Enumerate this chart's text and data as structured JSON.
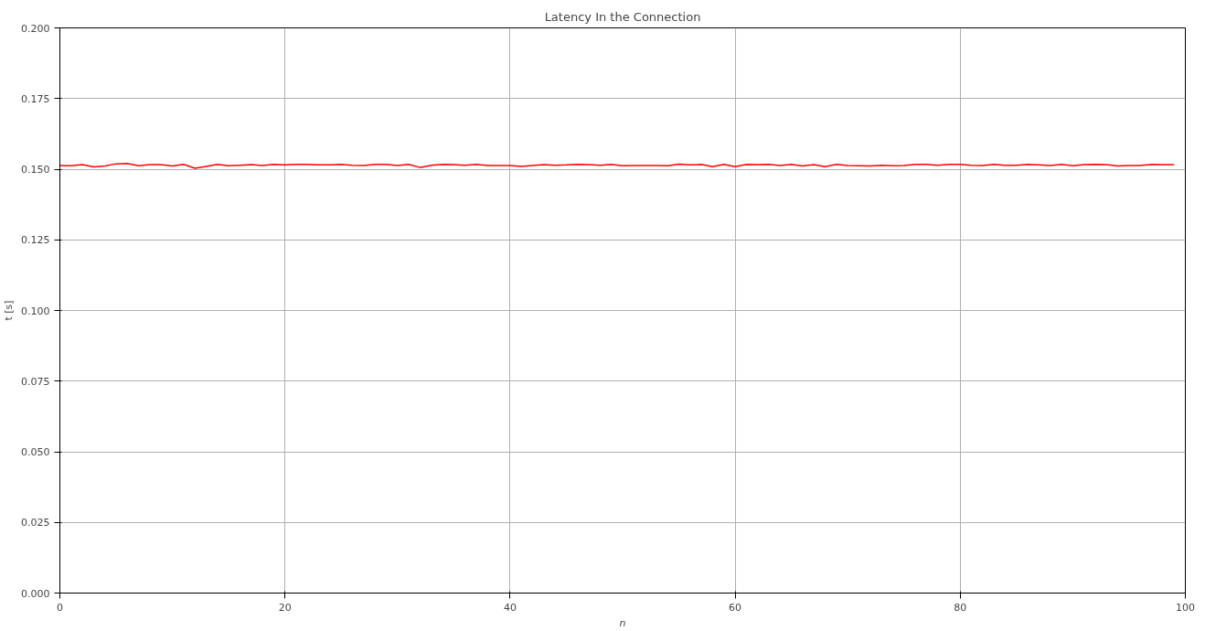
{
  "chart_data": {
    "type": "line",
    "title": "Latency In the Connection",
    "xlabel": "n",
    "ylabel": "t [s]",
    "x": [
      0,
      1,
      2,
      3,
      4,
      5,
      6,
      7,
      8,
      9,
      10,
      11,
      12,
      13,
      14,
      15,
      16,
      17,
      18,
      19,
      20,
      21,
      22,
      23,
      24,
      25,
      26,
      27,
      28,
      29,
      30,
      31,
      32,
      33,
      34,
      35,
      36,
      37,
      38,
      39,
      40,
      41,
      42,
      43,
      44,
      45,
      46,
      47,
      48,
      49,
      50,
      51,
      52,
      53,
      54,
      55,
      56,
      57,
      58,
      59,
      60,
      61,
      62,
      63,
      64,
      65,
      66,
      67,
      68,
      69,
      70,
      71,
      72,
      73,
      74,
      75,
      76,
      77,
      78,
      79,
      80,
      81,
      82,
      83,
      84,
      85,
      86,
      87,
      88,
      89,
      90,
      91,
      92,
      93,
      94,
      95,
      96,
      97,
      98,
      99
    ],
    "series": [
      {
        "color": "#ff0000",
        "values": [
          0.1513,
          0.1512,
          0.1516,
          0.1508,
          0.1511,
          0.1519,
          0.152,
          0.1512,
          0.1516,
          0.1516,
          0.1511,
          0.1517,
          0.1503,
          0.151,
          0.1517,
          0.1512,
          0.1514,
          0.1516,
          0.1513,
          0.1517,
          0.1515,
          0.1517,
          0.1517,
          0.1515,
          0.1515,
          0.1517,
          0.1514,
          0.1513,
          0.1517,
          0.1517,
          0.1513,
          0.1517,
          0.1506,
          0.1514,
          0.1517,
          0.1516,
          0.1514,
          0.1517,
          0.1513,
          0.1513,
          0.1513,
          0.151,
          0.1513,
          0.1516,
          0.1514,
          0.1515,
          0.1517,
          0.1516,
          0.1514,
          0.1517,
          0.1512,
          0.1513,
          0.1513,
          0.1513,
          0.1512,
          0.1518,
          0.1515,
          0.1517,
          0.1509,
          0.1517,
          0.1509,
          0.1517,
          0.1516,
          0.1517,
          0.1513,
          0.1517,
          0.1511,
          0.1516,
          0.1509,
          0.1517,
          0.1513,
          0.1512,
          0.1511,
          0.1514,
          0.1512,
          0.1513,
          0.1517,
          0.1517,
          0.1514,
          0.1517,
          0.1517,
          0.1514,
          0.1513,
          0.1517,
          0.1514,
          0.1514,
          0.1517,
          0.1515,
          0.1513,
          0.1517,
          0.1512,
          0.1516,
          0.1517,
          0.1516,
          0.1511,
          0.1513,
          0.1513,
          0.1517,
          0.1516,
          0.1516
        ]
      }
    ],
    "xlim": [
      0,
      100
    ],
    "xticks": [
      0,
      20,
      40,
      60,
      80,
      100
    ],
    "ylim": [
      0,
      0.2
    ],
    "yticks": [
      {
        "value": 0,
        "label": "0.000"
      },
      {
        "value": 0.025,
        "label": "0.025"
      },
      {
        "value": 0.05,
        "label": "0.050"
      },
      {
        "value": 0.075,
        "label": "0.075"
      },
      {
        "value": 0.1,
        "label": "0.100"
      },
      {
        "value": 0.125,
        "label": "0.125"
      },
      {
        "value": 0.15,
        "label": "0.150"
      },
      {
        "value": 0.175,
        "label": "0.175"
      },
      {
        "value": 0.2,
        "label": "0.200"
      }
    ],
    "grid": true,
    "marker": "none",
    "line_style": "solid"
  }
}
